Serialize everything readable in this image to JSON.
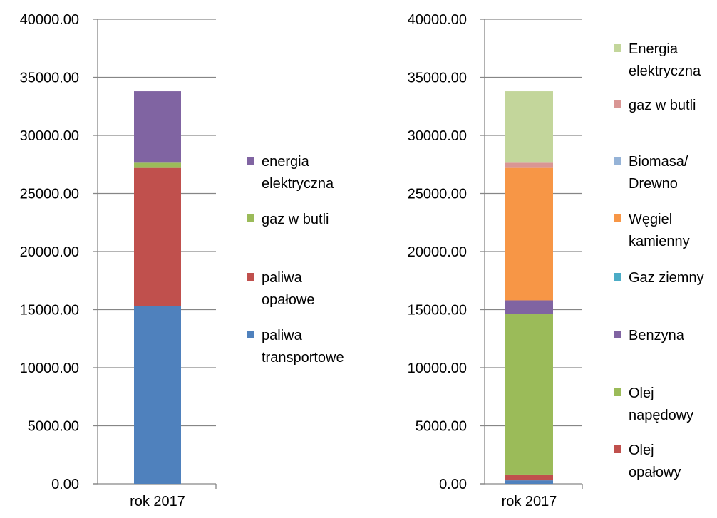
{
  "chart_data": [
    {
      "type": "bar",
      "stacked": true,
      "categories": [
        "rok 2017"
      ],
      "ylim": [
        0,
        40000
      ],
      "y_ticks": [
        0,
        5000,
        10000,
        15000,
        20000,
        25000,
        30000,
        35000,
        40000
      ],
      "y_tick_labels": [
        "0.00",
        "5000.00",
        "10000.00",
        "15000.00",
        "20000.00",
        "25000.00",
        "30000.00",
        "35000.00",
        "40000.00"
      ],
      "grid": true,
      "legend_position": "right",
      "series": [
        {
          "name": "paliwa transportowe",
          "legend_lines": [
            "paliwa",
            "transportowe"
          ],
          "values": [
            15300
          ],
          "color": "#4F81BD"
        },
        {
          "name": "paliwa opałowe",
          "legend_lines": [
            "paliwa",
            "opałowe"
          ],
          "values": [
            11900
          ],
          "color": "#C0504D"
        },
        {
          "name": "gaz w butli",
          "legend_lines": [
            "gaz w butli"
          ],
          "values": [
            450
          ],
          "color": "#9BBB59"
        },
        {
          "name": "energia elektryczna",
          "legend_lines": [
            "energia",
            "elektryczna"
          ],
          "values": [
            6150
          ],
          "color": "#8064A2"
        }
      ]
    },
    {
      "type": "bar",
      "stacked": true,
      "categories": [
        "rok 2017"
      ],
      "ylim": [
        0,
        40000
      ],
      "y_ticks": [
        0,
        5000,
        10000,
        15000,
        20000,
        25000,
        30000,
        35000,
        40000
      ],
      "y_tick_labels": [
        "0.00",
        "5000.00",
        "10000.00",
        "15000.00",
        "20000.00",
        "25000.00",
        "30000.00",
        "35000.00",
        "40000.00"
      ],
      "grid": true,
      "legend_position": "right",
      "series": [
        {
          "name": "",
          "values": [
            300
          ],
          "color": "#4F81BD"
        },
        {
          "name": "Olej opałowy",
          "legend_lines": [
            "Olej",
            "opałowy"
          ],
          "values": [
            500
          ],
          "color": "#C0504D"
        },
        {
          "name": "Olej napędowy",
          "legend_lines": [
            "Olej",
            "napędowy"
          ],
          "values": [
            13800
          ],
          "color": "#9BBB59"
        },
        {
          "name": "Benzyna",
          "legend_lines": [
            "Benzyna"
          ],
          "values": [
            1200
          ],
          "color": "#8064A2"
        },
        {
          "name": "Gaz ziemny",
          "legend_lines": [
            "Gaz ziemny"
          ],
          "values": [
            0
          ],
          "color": "#4BACC6"
        },
        {
          "name": "Węgiel kamienny",
          "legend_lines": [
            "Węgiel",
            "kamienny"
          ],
          "values": [
            11400
          ],
          "color": "#F79646"
        },
        {
          "name": "Biomasa/ Drewno",
          "legend_lines": [
            "Biomasa/",
            "Drewno"
          ],
          "values": [
            0
          ],
          "color": "#95B3D7"
        },
        {
          "name": "gaz w butli",
          "legend_lines": [
            "gaz w butli"
          ],
          "values": [
            450
          ],
          "color": "#D99694"
        },
        {
          "name": "Energia elektryczna",
          "legend_lines": [
            "Energia",
            "elektryczna"
          ],
          "values": [
            6150
          ],
          "color": "#C3D69B"
        }
      ]
    }
  ]
}
